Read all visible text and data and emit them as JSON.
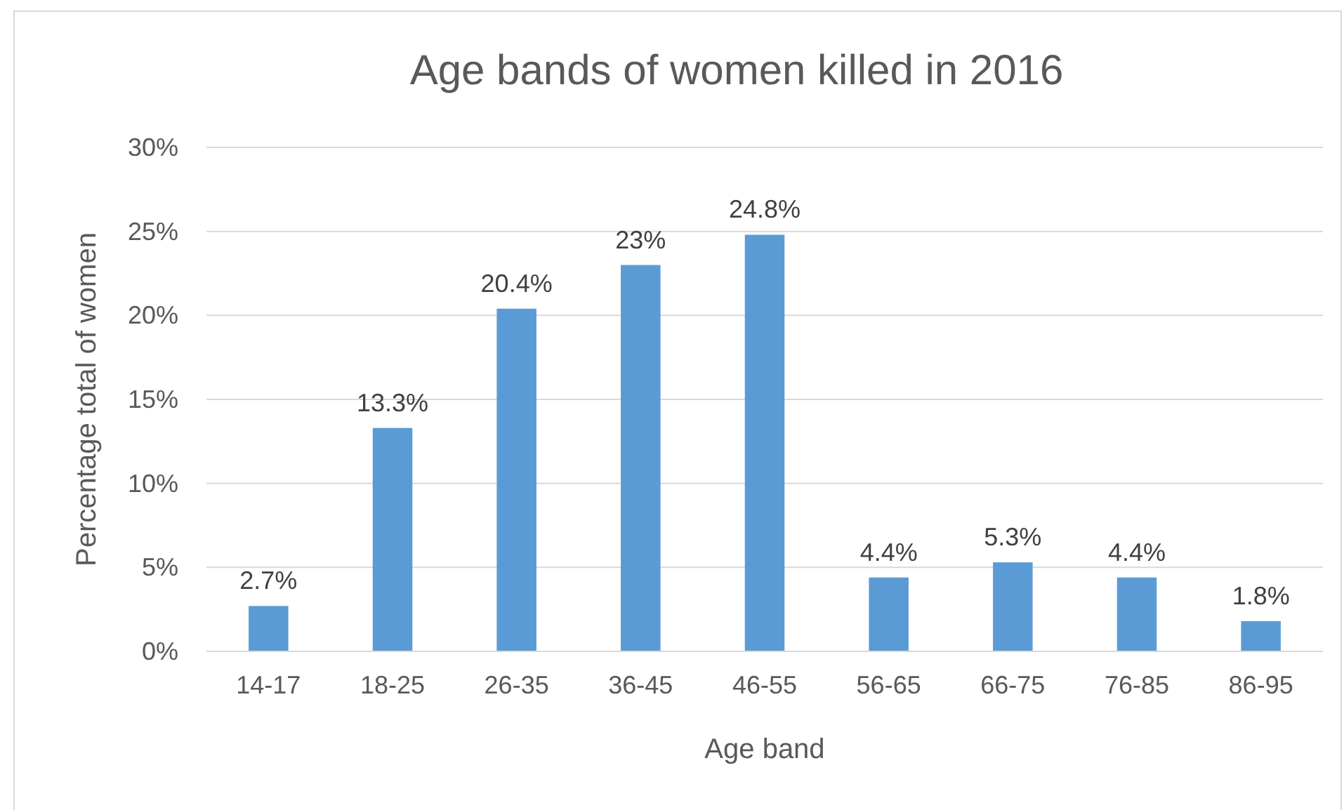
{
  "chart_data": {
    "type": "bar",
    "title": "Age bands of women killed in 2016",
    "xlabel": "Age band",
    "ylabel": "Percentage total of women",
    "categories": [
      "14-17",
      "18-25",
      "26-35",
      "36-45",
      "46-55",
      "56-65",
      "66-75",
      "76-85",
      "86-95"
    ],
    "values": [
      2.7,
      13.3,
      20.4,
      23,
      24.8,
      4.4,
      5.3,
      4.4,
      1.8
    ],
    "value_labels": [
      "2.7%",
      "13.3%",
      "20.4%",
      "23%",
      "24.8%",
      "4.4%",
      "5.3%",
      "4.4%",
      "1.8%"
    ],
    "color": "#5b9bd5",
    "ylim": [
      0,
      30
    ],
    "yticks": [
      {
        "value": 0,
        "label": "0%"
      },
      {
        "value": 5,
        "label": "5%"
      },
      {
        "value": 10,
        "label": "10%"
      },
      {
        "value": 15,
        "label": "15%"
      },
      {
        "value": 20,
        "label": "20%"
      },
      {
        "value": 25,
        "label": "25%"
      },
      {
        "value": 30,
        "label": "30%"
      }
    ],
    "grid": "y"
  }
}
